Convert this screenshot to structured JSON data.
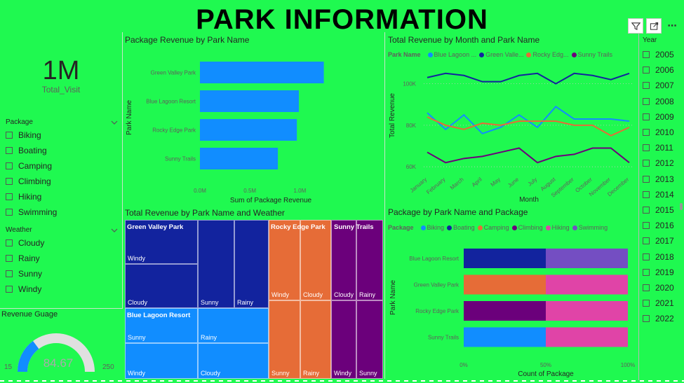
{
  "header": {
    "title": "PARK INFORMATION"
  },
  "toolbar": {
    "filter_icon": "filter-icon",
    "focus_icon": "focus-mode-icon",
    "more_icon": "more-options-icon",
    "more_label": "⋯"
  },
  "kpi": {
    "value": "1M",
    "label": "Total_Visit"
  },
  "package_slicer": {
    "title": "Package",
    "items": [
      "Biking",
      "Boating",
      "Camping",
      "Climbing",
      "Hiking",
      "Swimming"
    ]
  },
  "weather_slicer": {
    "title": "Weather",
    "items": [
      "Cloudy",
      "Rainy",
      "Sunny",
      "Windy"
    ]
  },
  "gauge": {
    "title": "Revenue Guage",
    "min": "15",
    "max": "250",
    "value": "84.67",
    "fraction": 0.295
  },
  "year_slicer": {
    "title": "Year",
    "items": [
      "2005",
      "2006",
      "2007",
      "2008",
      "2009",
      "2010",
      "2011",
      "2012",
      "2013",
      "2014",
      "2015",
      "2016",
      "2017",
      "2018",
      "2019",
      "2020",
      "2021",
      "2022"
    ]
  },
  "colors": {
    "blue_lagoon": "#118dff",
    "green_valley": "#12239e",
    "rocky_edge": "#e66c37",
    "sunny_trails": "#6b007b",
    "hiking": "#e044a7",
    "swimming": "#744ec2",
    "background": "#1ff950"
  },
  "bar_chart": {
    "title": "Package Revenue by Park Name",
    "chart_data": {
      "type": "bar",
      "orientation": "horizontal",
      "categories": [
        "Green Valley Park",
        "Blue Lagoon Resort",
        "Rocky Edge Park",
        "Sunny Trails"
      ],
      "values": [
        1.24,
        0.99,
        0.97,
        0.78
      ],
      "xlabel": "Sum of Package Revenue",
      "ylabel": "Park Name",
      "xticks": [
        "0.0M",
        "0.5M",
        "1.0M"
      ],
      "xlim": [
        0,
        1.25
      ],
      "grid": false
    }
  },
  "line_chart": {
    "title": "Total Revenue by Month and Park Name",
    "legend_title": "Park Name",
    "chart_data": {
      "type": "line",
      "x": [
        "January",
        "February",
        "March",
        "April",
        "May",
        "June",
        "July",
        "August",
        "September",
        "October",
        "November",
        "December"
      ],
      "series": [
        {
          "name": "Blue Lagoon ...",
          "values": [
            86,
            78,
            85,
            76,
            79,
            85,
            79,
            89,
            83,
            83,
            83,
            82
          ]
        },
        {
          "name": "Green Valle...",
          "values": [
            103,
            105,
            104,
            101,
            101,
            104,
            105,
            100,
            105,
            104,
            102,
            105
          ]
        },
        {
          "name": "Rocky Edg...",
          "values": [
            84,
            80,
            78,
            81,
            80,
            82,
            82,
            82,
            80,
            80,
            75,
            79
          ]
        },
        {
          "name": "Sunny Trails",
          "values": [
            67,
            62,
            64,
            65,
            67,
            69,
            62,
            65,
            66,
            69,
            69,
            62
          ]
        }
      ],
      "xlabel": "Month",
      "ylabel": "Total Revenue",
      "yticks": [
        "60K",
        "80K",
        "100K"
      ],
      "ylim": [
        55,
        110
      ],
      "legend": "top"
    }
  },
  "treemap": {
    "title": "Total Revenue by Park Name and Weather",
    "chart_data": {
      "type": "treemap",
      "groups": [
        {
          "name": "Green Valley Park",
          "children": [
            "Windy",
            "Cloudy",
            "Sunny",
            "Rainy"
          ]
        },
        {
          "name": "Blue Lagoon Resort",
          "children": [
            "Sunny",
            "Windy",
            "Rainy",
            "Cloudy"
          ]
        },
        {
          "name": "Rocky Edge Park",
          "children": [
            "Windy",
            "Cloudy",
            "Sunny",
            "Rainy"
          ]
        },
        {
          "name": "Sunny Trails",
          "children": [
            "Cloudy",
            "Rainy",
            "Windy",
            "Sunny"
          ]
        }
      ]
    }
  },
  "stacked_chart": {
    "title": "Package by Park Name and Package",
    "legend_title": "Package",
    "legend": [
      "Biking",
      "Boating",
      "Camping",
      "Climbing",
      "Hiking",
      "Swimming"
    ],
    "chart_data": {
      "type": "bar",
      "stacking": "100%",
      "categories": [
        "Blue Lagoon Resort",
        "Green Valley Park",
        "Rocky Edge Park",
        "Sunny Trails"
      ],
      "series": [
        {
          "name": "Biking",
          "values": [
            0,
            0,
            0,
            50
          ]
        },
        {
          "name": "Boating",
          "values": [
            50,
            0,
            0,
            0
          ]
        },
        {
          "name": "Camping",
          "values": [
            0,
            50,
            0,
            0
          ]
        },
        {
          "name": "Climbing",
          "values": [
            0,
            0,
            50,
            0
          ]
        },
        {
          "name": "Hiking",
          "values": [
            0,
            50,
            50,
            50
          ]
        },
        {
          "name": "Swimming",
          "values": [
            50,
            0,
            0,
            0
          ]
        }
      ],
      "xlabel": "Count of Package",
      "ylabel": "Park Name",
      "xticks": [
        "0%",
        "50%",
        "100%"
      ]
    }
  }
}
